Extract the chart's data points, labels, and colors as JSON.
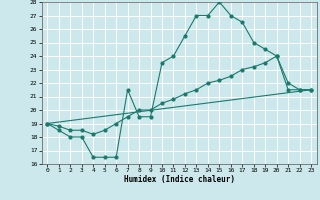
{
  "line1_x": [
    0,
    1,
    2,
    3,
    4,
    5,
    6,
    7,
    8,
    9,
    10,
    11,
    12,
    13,
    14,
    15,
    16,
    17,
    18,
    19,
    20,
    21,
    22,
    23
  ],
  "line1_y": [
    19,
    18.5,
    18,
    18,
    16.5,
    16.5,
    16.5,
    21.5,
    19.5,
    19.5,
    23.5,
    24,
    25.5,
    27,
    27,
    28,
    27,
    26.5,
    25,
    24.5,
    24,
    22,
    21.5,
    21.5
  ],
  "line2_x": [
    0,
    1,
    2,
    3,
    4,
    5,
    6,
    7,
    8,
    9,
    10,
    11,
    12,
    13,
    14,
    15,
    16,
    17,
    18,
    19,
    20,
    21,
    22,
    23
  ],
  "line2_y": [
    19,
    18.8,
    18.5,
    18.5,
    18.2,
    18.5,
    19,
    19.5,
    20,
    20,
    20.5,
    20.8,
    21.2,
    21.5,
    22,
    22.2,
    22.5,
    23,
    23.2,
    23.5,
    24,
    21.5,
    21.5,
    21.5
  ],
  "line3_x": [
    0,
    23
  ],
  "line3_y": [
    19,
    21.5
  ],
  "color": "#1a7a6e",
  "bg_color": "#cce8ec",
  "grid_color": "#ffffff",
  "xlabel": "Humidex (Indice chaleur)",
  "ylim": [
    16,
    28
  ],
  "xlim": [
    -0.5,
    23.5
  ],
  "yticks": [
    16,
    17,
    18,
    19,
    20,
    21,
    22,
    23,
    24,
    25,
    26,
    27,
    28
  ],
  "xticks": [
    0,
    1,
    2,
    3,
    4,
    5,
    6,
    7,
    8,
    9,
    10,
    11,
    12,
    13,
    14,
    15,
    16,
    17,
    18,
    19,
    20,
    21,
    22,
    23
  ]
}
